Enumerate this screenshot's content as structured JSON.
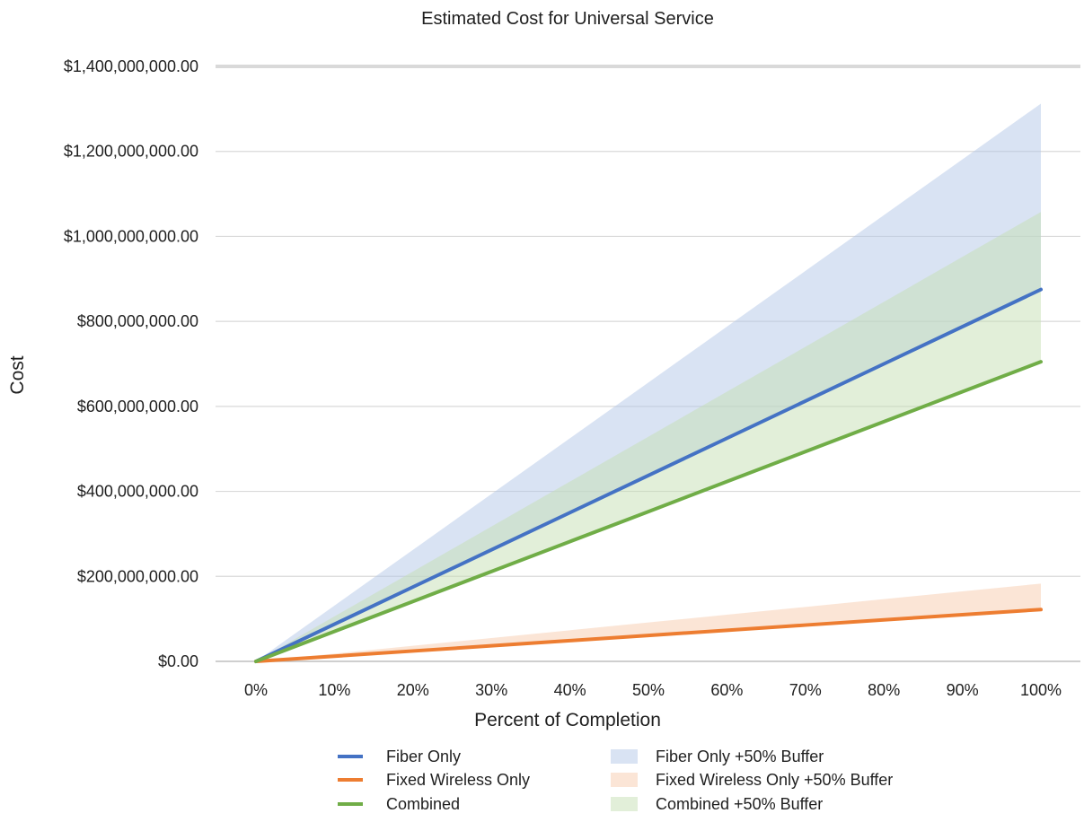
{
  "chart_data": {
    "type": "area",
    "title": "Estimated Cost for Universal Service",
    "xlabel": "Percent of Completion",
    "ylabel": "Cost",
    "x": [
      0,
      10,
      20,
      30,
      40,
      50,
      60,
      70,
      80,
      90,
      100
    ],
    "x_tick_labels": [
      "0%",
      "10%",
      "20%",
      "30%",
      "40%",
      "50%",
      "60%",
      "70%",
      "80%",
      "90%",
      "100%"
    ],
    "ylim": [
      0,
      1400000000
    ],
    "y_ticks": [
      0,
      200000000,
      400000000,
      600000000,
      800000000,
      1000000000,
      1200000000,
      1400000000
    ],
    "y_tick_labels": [
      "$0.00",
      "$200,000,000.00",
      "$400,000,000.00",
      "$600,000,000.00",
      "$800,000,000.00",
      "$1,000,000,000.00",
      "$1,200,000,000.00",
      "$1,400,000,000.00"
    ],
    "grid": true,
    "legend_position": "bottom",
    "lines": [
      {
        "name": "Fiber Only",
        "color": "#4472C4",
        "values": [
          0,
          87500000,
          175000000,
          262500000,
          350000000,
          437500000,
          525000000,
          612500000,
          700000000,
          787500000,
          875000000
        ]
      },
      {
        "name": "Fixed Wireless Only",
        "color": "#ED7D31",
        "values": [
          0,
          12200000,
          24400000,
          36600000,
          48800000,
          61000000,
          73200000,
          85400000,
          97600000,
          109800000,
          122000000
        ]
      },
      {
        "name": "Combined",
        "color": "#70AD47",
        "values": [
          0,
          70500000,
          141000000,
          211500000,
          282000000,
          352500000,
          423000000,
          493500000,
          564000000,
          634500000,
          705000000
        ]
      }
    ],
    "bands": [
      {
        "name": "Fiber Only +50% Buffer",
        "color": "#B4C7E7",
        "lower": [
          0,
          87500000,
          175000000,
          262500000,
          350000000,
          437500000,
          525000000,
          612500000,
          700000000,
          787500000,
          875000000
        ],
        "upper": [
          0,
          131250000,
          262500000,
          393750000,
          525000000,
          656250000,
          787500000,
          918750000,
          1050000000,
          1181250000,
          1312500000
        ]
      },
      {
        "name": "Fixed Wireless Only +50% Buffer",
        "color": "#F8CBAD",
        "lower": [
          0,
          12200000,
          24400000,
          36600000,
          48800000,
          61000000,
          73200000,
          85400000,
          97600000,
          109800000,
          122000000
        ],
        "upper": [
          0,
          18300000,
          36600000,
          54900000,
          73200000,
          91500000,
          109800000,
          128100000,
          146400000,
          164700000,
          183000000
        ]
      },
      {
        "name": "Combined +50% Buffer",
        "color": "#C5E0B4",
        "lower": [
          0,
          70500000,
          141000000,
          211500000,
          282000000,
          352500000,
          423000000,
          493500000,
          564000000,
          634500000,
          705000000
        ],
        "upper": [
          0,
          105750000,
          211500000,
          317250000,
          423000000,
          528750000,
          634500000,
          740250000,
          846000000,
          951750000,
          1057500000
        ]
      }
    ]
  }
}
